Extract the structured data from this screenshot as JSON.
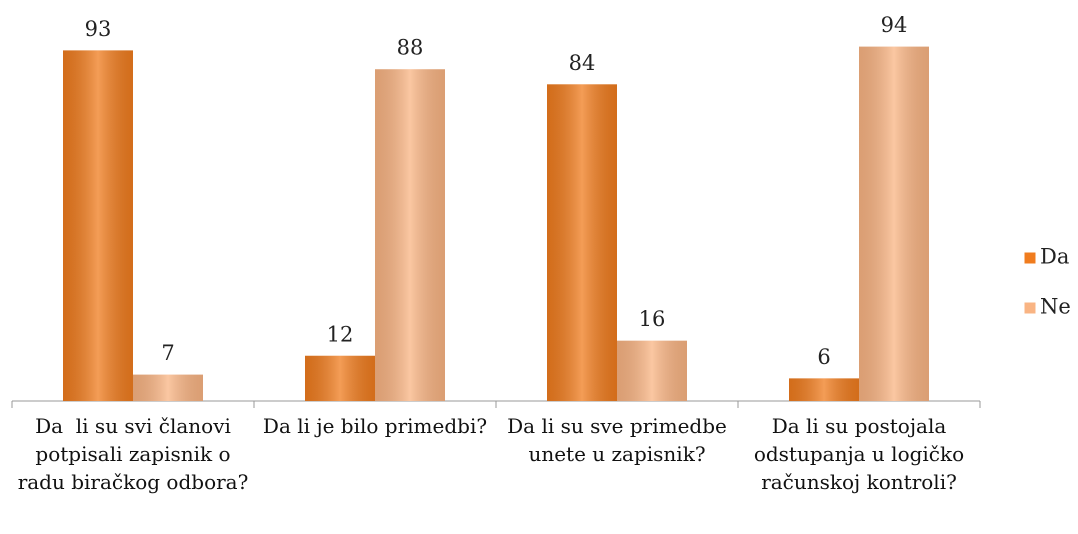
{
  "chart_data": {
    "type": "bar",
    "categories": [
      "Da  li su svi članovi potpisali zapisnik o radu biračkog odbora?",
      "Da li je bilo primedbi?",
      "Da li su sve primedbe unete u zapisnik?",
      "Da li su postojala odstupanja u logičko računskoj kontroli?"
    ],
    "series": [
      {
        "name": "Da",
        "color": "#f07c1e",
        "values": [
          93,
          12,
          84,
          6
        ]
      },
      {
        "name": "Ne",
        "color": "#f9b483",
        "values": [
          7,
          88,
          16,
          94
        ]
      }
    ],
    "ylim": [
      0,
      100
    ],
    "legend": "right"
  }
}
